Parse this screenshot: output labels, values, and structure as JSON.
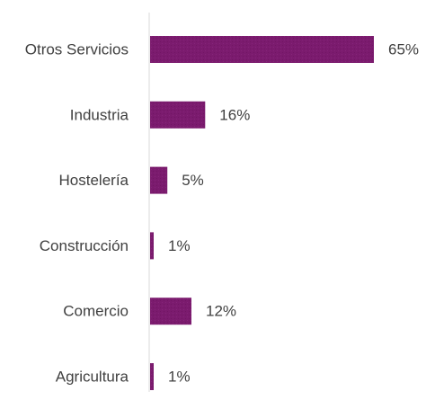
{
  "chart_data": {
    "type": "bar",
    "orientation": "horizontal",
    "categories": [
      "Otros Servicios",
      "Industria",
      "Hostelería",
      "Construcción",
      "Comercio",
      "Agricultura"
    ],
    "values": [
      65,
      16,
      5,
      1,
      12,
      1
    ],
    "value_labels": [
      "65%",
      "16%",
      "5%",
      "1%",
      "12%",
      "1%"
    ],
    "value_unit": "%",
    "xlim": [
      0,
      65
    ],
    "grid": false,
    "legend": "none",
    "bar_color": "#7B1B6E",
    "axis_color": "#D9D9D9",
    "text_color": "#404040"
  }
}
